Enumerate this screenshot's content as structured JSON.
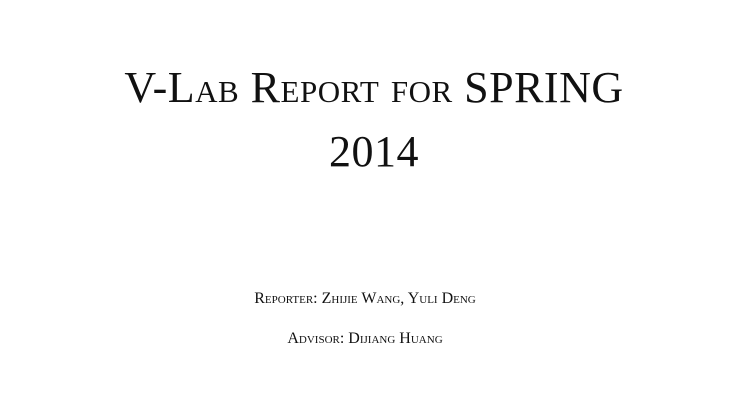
{
  "document": {
    "title_line1": "V-Lab Report for SPRING",
    "title_line2": "2014",
    "reporter_line": "Reporter: Zhijie Wang, Yuli Deng",
    "advisor_line": "Advisor: Dijiang Huang"
  }
}
